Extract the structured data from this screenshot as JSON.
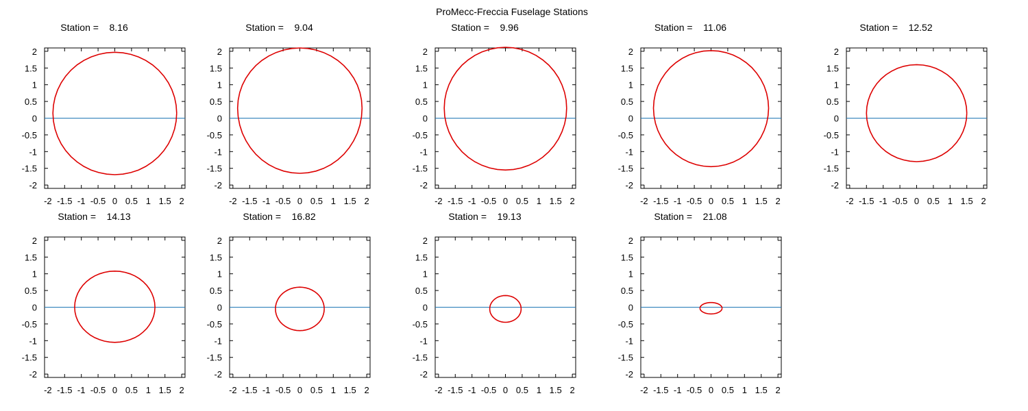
{
  "figure_title": "ProMecc-Freccia Fuselage Stations",
  "station_prefix": "Station =",
  "colors": {
    "section": "#dd0000",
    "waterline": "#1f77b4",
    "axis": "#000000"
  },
  "chart_data": [
    {
      "type": "line",
      "title": "Station =    8.16",
      "station": "8.16",
      "xlim": [
        -2.1,
        2.1
      ],
      "ylim": [
        -2.1,
        2.1
      ],
      "grid": false,
      "xticks": [
        "-2",
        "-1.5",
        "-1",
        "-0.5",
        "0",
        "0.5",
        "1",
        "1.5",
        "2"
      ],
      "yticks": [
        "2",
        "1.5",
        "1",
        "0.5",
        "0",
        "-0.5",
        "-1",
        "-1.5",
        "-2"
      ],
      "section": {
        "yc": 0.15,
        "a": 1.85,
        "b_top": 1.82,
        "b_bot": 1.84
      }
    },
    {
      "type": "line",
      "title": "Station =    9.04",
      "station": "9.04",
      "xlim": [
        -2.1,
        2.1
      ],
      "ylim": [
        -2.1,
        2.1
      ],
      "grid": false,
      "xticks": [
        "-2",
        "-1.5",
        "-1",
        "-0.5",
        "0",
        "0.5",
        "1",
        "1.5",
        "2"
      ],
      "yticks": [
        "2",
        "1.5",
        "1",
        "0.5",
        "0",
        "-0.5",
        "-1",
        "-1.5",
        "-2"
      ],
      "section": {
        "yc": 0.3,
        "a": 1.86,
        "b_top": 1.8,
        "b_bot": 1.95
      }
    },
    {
      "type": "line",
      "title": "Station =    9.96",
      "station": "9.96",
      "xlim": [
        -2.1,
        2.1
      ],
      "ylim": [
        -2.1,
        2.1
      ],
      "grid": false,
      "xticks": [
        "-2",
        "-1.5",
        "-1",
        "-0.5",
        "0",
        "0.5",
        "1",
        "1.5",
        "2"
      ],
      "yticks": [
        "2",
        "1.5",
        "1",
        "0.5",
        "0",
        "-0.5",
        "-1",
        "-1.5",
        "-2"
      ],
      "section": {
        "yc": 0.3,
        "a": 1.83,
        "b_top": 1.82,
        "b_bot": 1.85
      }
    },
    {
      "type": "line",
      "title": "Station =    11.06",
      "station": "11.06",
      "xlim": [
        -2.1,
        2.1
      ],
      "ylim": [
        -2.1,
        2.1
      ],
      "grid": false,
      "xticks": [
        "-2",
        "-1.5",
        "-1",
        "-0.5",
        "0",
        "0.5",
        "1",
        "1.5",
        "2"
      ],
      "yticks": [
        "2",
        "1.5",
        "1",
        "0.5",
        "0",
        "-0.5",
        "-1",
        "-1.5",
        "-2"
      ],
      "section": {
        "yc": 0.3,
        "a": 1.72,
        "b_top": 1.72,
        "b_bot": 1.75
      }
    },
    {
      "type": "line",
      "title": "Station =    12.52",
      "station": "12.52",
      "xlim": [
        -2.1,
        2.1
      ],
      "ylim": [
        -2.1,
        2.1
      ],
      "grid": false,
      "xticks": [
        "-2",
        "-1.5",
        "-1",
        "-0.5",
        "0",
        "0.5",
        "1",
        "1.5",
        "2"
      ],
      "yticks": [
        "2",
        "1.5",
        "1",
        "0.5",
        "0",
        "-0.5",
        "-1",
        "-1.5",
        "-2"
      ],
      "section": {
        "yc": 0.15,
        "a": 1.5,
        "b_top": 1.45,
        "b_bot": 1.45
      }
    },
    {
      "type": "line",
      "title": "Station =    14.13",
      "station": "14.13",
      "xlim": [
        -2.1,
        2.1
      ],
      "ylim": [
        -2.1,
        2.1
      ],
      "grid": false,
      "xticks": [
        "-2",
        "-1.5",
        "-1",
        "-0.5",
        "0",
        "0.5",
        "1",
        "1.5",
        "2"
      ],
      "yticks": [
        "2",
        "1.5",
        "1",
        "0.5",
        "0",
        "-0.5",
        "-1",
        "-1.5",
        "-2"
      ],
      "section": {
        "yc": 0.0,
        "a": 1.2,
        "b_top": 1.08,
        "b_bot": 1.05
      }
    },
    {
      "type": "line",
      "title": "Station =    16.82",
      "station": "16.82",
      "xlim": [
        -2.1,
        2.1
      ],
      "ylim": [
        -2.1,
        2.1
      ],
      "grid": false,
      "xticks": [
        "-2",
        "-1.5",
        "-1",
        "-0.5",
        "0",
        "0.5",
        "1",
        "1.5",
        "2"
      ],
      "yticks": [
        "2",
        "1.5",
        "1",
        "0.5",
        "0",
        "-0.5",
        "-1",
        "-1.5",
        "-2"
      ],
      "section": {
        "yc": -0.05,
        "a": 0.73,
        "b_top": 0.65,
        "b_bot": 0.65
      }
    },
    {
      "type": "line",
      "title": "Station =    19.13",
      "station": "19.13",
      "xlim": [
        -2.1,
        2.1
      ],
      "ylim": [
        -2.1,
        2.1
      ],
      "grid": false,
      "xticks": [
        "-2",
        "-1.5",
        "-1",
        "-0.5",
        "0",
        "0.5",
        "1",
        "1.5",
        "2"
      ],
      "yticks": [
        "2",
        "1.5",
        "1",
        "0.5",
        "0",
        "-0.5",
        "-1",
        "-1.5",
        "-2"
      ],
      "section": {
        "yc": -0.05,
        "a": 0.47,
        "b_top": 0.4,
        "b_bot": 0.4
      }
    },
    {
      "type": "line",
      "title": "Station =    21.08",
      "station": "21.08",
      "xlim": [
        -2.1,
        2.1
      ],
      "ylim": [
        -2.1,
        2.1
      ],
      "grid": false,
      "xticks": [
        "-2",
        "-1.5",
        "-1",
        "-0.5",
        "0",
        "0.5",
        "1",
        "1.5",
        "2"
      ],
      "yticks": [
        "2",
        "1.5",
        "1",
        "0.5",
        "0",
        "-0.5",
        "-1",
        "-1.5",
        "-2"
      ],
      "section": {
        "yc": -0.03,
        "a": 0.33,
        "b_top": 0.17,
        "b_bot": 0.17
      }
    }
  ]
}
